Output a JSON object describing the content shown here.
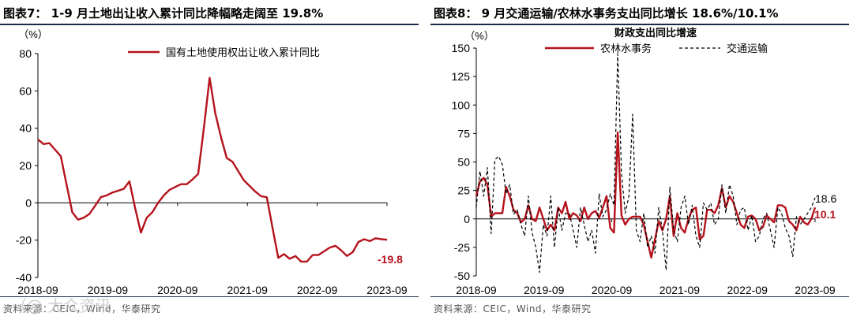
{
  "figures": [
    {
      "title": "图表7： 1-9 月土地出让收入累计同比降幅略走阔至 19.8%",
      "source": "资料来源：CEIC，Wind，华泰研究"
    },
    {
      "title": "图表8： 9 月交通运输/农林水事务支出同比增长 18.6%/10.1%",
      "source": "资料来源：CEIC，Wind，华泰研究"
    }
  ],
  "watermark": "（@ 大众资讯",
  "chart_data": [
    {
      "type": "line",
      "ylabel": "（%）",
      "ylim": [
        -40,
        80
      ],
      "yticks": [
        -40,
        -20,
        0,
        20,
        40,
        60,
        80
      ],
      "xticks": [
        "2018-09",
        "2019-09",
        "2020-09",
        "2021-09",
        "2022-09",
        "2023-09"
      ],
      "grid": false,
      "legend_position": "top-center",
      "series": [
        {
          "name": "国有土地使用权出让收入累计同比",
          "color": "#b5121b",
          "values": [
            34,
            31.5,
            32,
            28.5,
            25,
            10,
            -5,
            -9,
            -8,
            -6,
            -1.5,
            3,
            4,
            5.5,
            6.5,
            7.5,
            11.5,
            -3,
            -16,
            -8,
            -5,
            0,
            4,
            7,
            8.5,
            10,
            10,
            12.5,
            15.5,
            40,
            67,
            48,
            35,
            24,
            22,
            17,
            12,
            9,
            6,
            3.5,
            3,
            -13.5,
            -29.5,
            -27.5,
            -30,
            -28.5,
            -31.5,
            -31.5,
            -28,
            -28,
            -26,
            -24,
            -23,
            -25.5,
            -28.5,
            -26.5,
            -21,
            -19.5,
            -20.5,
            -19,
            -19.5,
            -19.8
          ]
        }
      ],
      "annotations": [
        {
          "text": "-19.8",
          "color": "#b5121b"
        }
      ]
    },
    {
      "type": "line",
      "title": "财政支出同比增速",
      "ylabel": "（%）",
      "ylim": [
        -50,
        150
      ],
      "yticks": [
        -50,
        -25,
        0,
        25,
        50,
        75,
        100,
        125,
        150
      ],
      "xticks": [
        "2018-09",
        "2019-09",
        "2020-09",
        "2021-09",
        "2022-09",
        "2023-09"
      ],
      "grid": false,
      "legend_position": "top-center",
      "series": [
        {
          "name": "农林水事务",
          "color": "#b5121b",
          "values": [
            20,
            33,
            36,
            30,
            2,
            5,
            5,
            5,
            28,
            20,
            8,
            5,
            -3,
            0,
            12,
            0,
            -2,
            10,
            0,
            -10,
            -5,
            -10,
            10,
            5,
            15,
            0,
            5,
            3,
            -2,
            10,
            0,
            5,
            7,
            1,
            10,
            20,
            -8,
            -12,
            76,
            3,
            -5,
            0,
            2,
            2,
            2,
            -5,
            -20,
            -34,
            -18,
            -2,
            -10,
            0,
            20,
            -15,
            5,
            -8,
            -12,
            0,
            8,
            10,
            -18,
            -15,
            8,
            8,
            5,
            12,
            27,
            10,
            20,
            15,
            5,
            -5,
            -8,
            2,
            3,
            0,
            -10,
            -7,
            3,
            0,
            -3,
            12,
            12,
            10,
            -2,
            -5,
            -10,
            2,
            -3,
            -5,
            0,
            10.1
          ]
        },
        {
          "name": "交通运输",
          "color": "#000000",
          "dashed": true,
          "values": [
            10,
            42,
            20,
            45,
            -13,
            52,
            55,
            48,
            22,
            30,
            4,
            8,
            -5,
            -15,
            20,
            -12,
            -25,
            -47,
            -5,
            -15,
            20,
            -25,
            10,
            -10,
            5,
            5,
            -10,
            -25,
            10,
            -5,
            -20,
            -10,
            -30,
            22,
            2,
            8,
            22,
            12,
            145,
            40,
            5,
            20,
            92,
            -10,
            -20,
            5,
            -25,
            -15,
            -30,
            10,
            -10,
            -45,
            28,
            -10,
            -20,
            10,
            20,
            -5,
            12,
            -15,
            -25,
            14,
            8,
            14,
            -5,
            0,
            30,
            5,
            30,
            20,
            -5,
            8,
            10,
            -10,
            3,
            -20,
            -15,
            0,
            5,
            -10,
            -25,
            10,
            5,
            -8,
            -15,
            -33,
            2,
            -5,
            0,
            5,
            10,
            18.6
          ]
        }
      ],
      "annotations": [
        {
          "text": "18.6",
          "color": "#000000"
        },
        {
          "text": "10.1",
          "color": "#b5121b"
        }
      ]
    }
  ]
}
